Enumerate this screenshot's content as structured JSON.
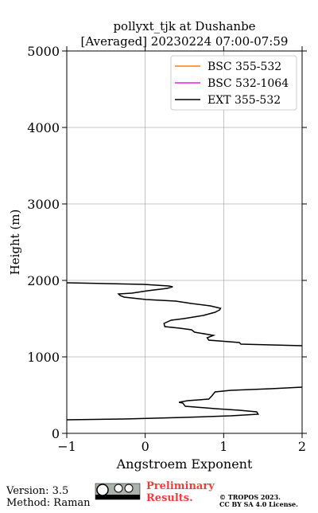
{
  "chart_data": {
    "type": "line",
    "title": [
      "pollyxt_tjk at Dushanbe",
      "[Averaged] 20230224 07:00-07:59"
    ],
    "x_label": "Angstroem Exponent",
    "y_label": "Height (m)",
    "xlim": [
      -1,
      2
    ],
    "xticks": [
      {
        "value": -1,
        "label": "−1"
      },
      0,
      1,
      2
    ],
    "ylim": [
      0,
      5000
    ],
    "yticks": [
      0,
      1000,
      2000,
      3000,
      4000,
      5000
    ],
    "grid": true,
    "legend": "upper right",
    "heights": [
      177,
      188,
      208,
      229,
      250,
      281,
      302,
      323,
      354,
      396,
      406,
      427,
      448,
      490,
      542,
      563,
      583,
      604,
      null,
      1146,
      1167,
      1188,
      1219,
      1250,
      1281,
      1323,
      1354,
      1375,
      1396,
      1438,
      1479,
      1500,
      1542,
      1583,
      1615,
      1635,
      1667,
      1698,
      1729,
      1750,
      1781,
      1802,
      1823,
      1833,
      1865,
      1896,
      1917,
      1927,
      1948,
      1969
    ],
    "series": [
      {
        "name": "BSC 355-532",
        "color": "#ff7f0e",
        "values": [
          null,
          null,
          null,
          null,
          null,
          null,
          null,
          null,
          null,
          null,
          null,
          null,
          null,
          null,
          null,
          null,
          null,
          null,
          null,
          null,
          null,
          null,
          null,
          null,
          null,
          null,
          null,
          null,
          null,
          null,
          null,
          null,
          null,
          null,
          null,
          null,
          null,
          null,
          null,
          null,
          null,
          null,
          null,
          null,
          null,
          null,
          null,
          null,
          null,
          null
        ]
      },
      {
        "name": "BSC 532-1064",
        "color": "#e81ee8",
        "values": [
          null,
          null,
          null,
          null,
          null,
          null,
          null,
          null,
          null,
          null,
          null,
          null,
          null,
          null,
          null,
          null,
          null,
          null,
          null,
          null,
          null,
          null,
          null,
          null,
          null,
          null,
          null,
          null,
          null,
          null,
          null,
          null,
          null,
          null,
          null,
          null,
          null,
          null,
          null,
          null,
          null,
          null,
          null,
          null,
          null,
          null,
          null,
          null,
          null,
          null
        ]
      },
      {
        "name": "EXT 355-532",
        "color": "#000000",
        "values": [
          -1.0,
          -0.27,
          0.49,
          1.09,
          1.44,
          1.42,
          1.2,
          0.89,
          0.51,
          0.48,
          0.43,
          0.54,
          0.81,
          0.85,
          0.89,
          1.09,
          1.6,
          2.0,
          null,
          2.0,
          1.22,
          1.2,
          0.81,
          0.79,
          0.87,
          0.63,
          0.59,
          0.44,
          0.25,
          0.24,
          0.33,
          0.49,
          0.74,
          0.89,
          0.95,
          0.96,
          0.83,
          0.59,
          0.39,
          0.01,
          -0.27,
          -0.32,
          -0.34,
          -0.17,
          0.03,
          0.28,
          0.35,
          0.3,
          -0.02,
          -1.0
        ]
      }
    ]
  },
  "footer": {
    "version": "Version: 3.5",
    "method": "Method: Raman",
    "notice": [
      "Preliminary",
      "Results."
    ],
    "copyright": [
      "© TROPOS 2023.",
      "CC BY SA 4.0 License."
    ]
  }
}
